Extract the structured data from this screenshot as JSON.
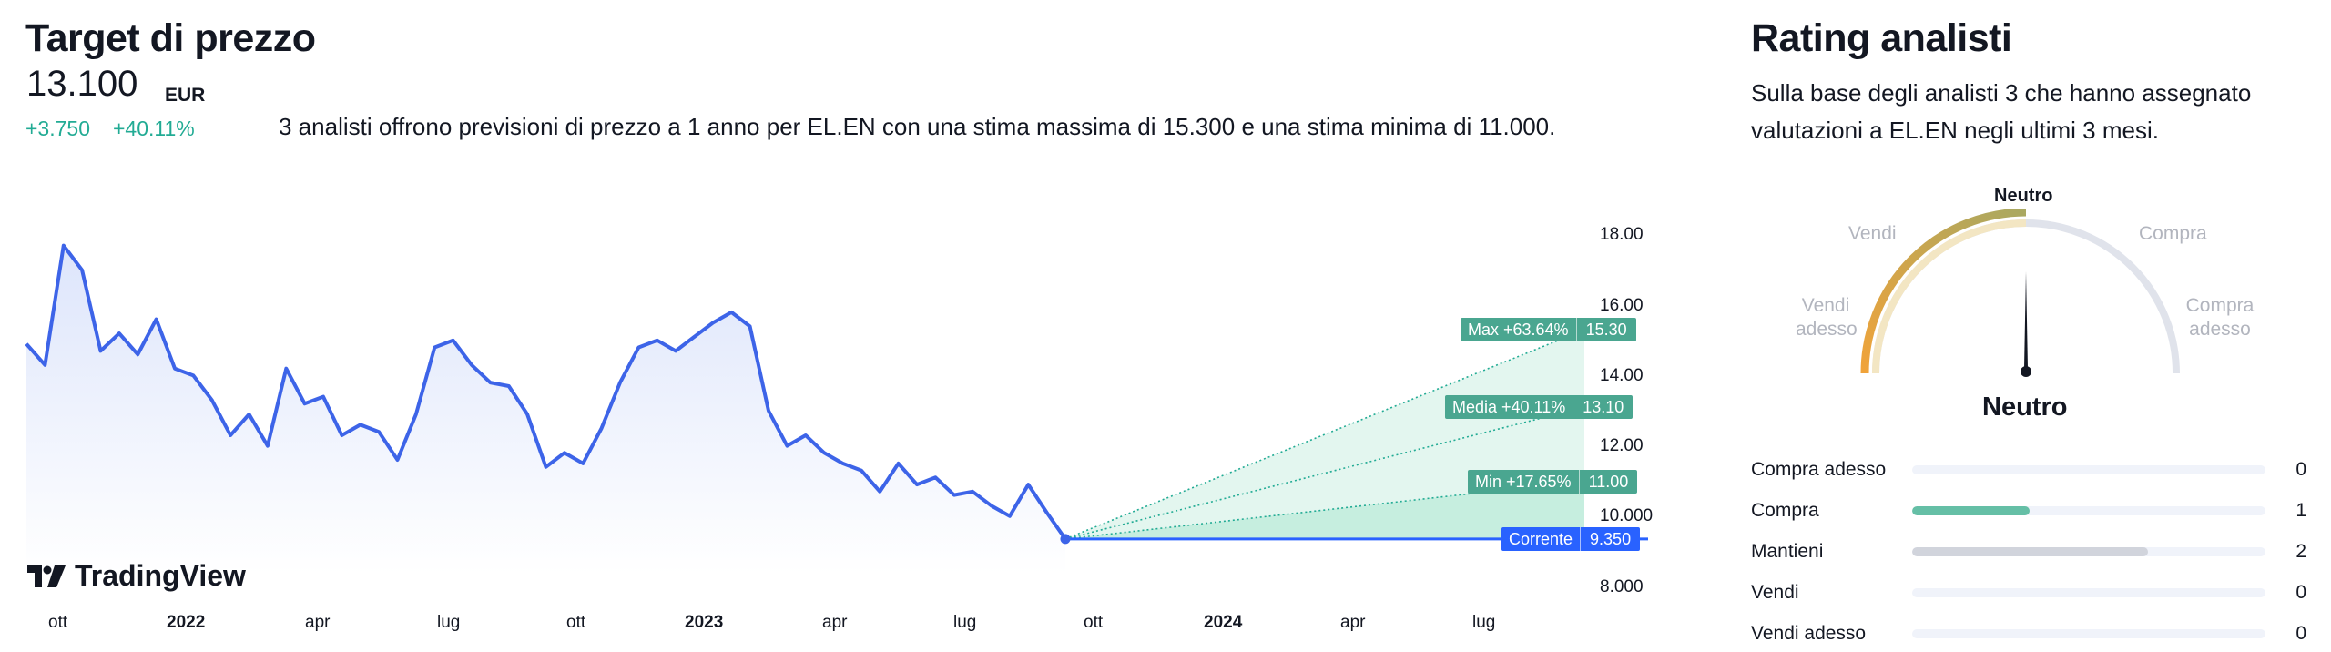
{
  "target": {
    "title": "Target di prezzo",
    "price": "13.100",
    "currency": "EUR",
    "change_abs": "+3.750",
    "change_pct": "+40.11%",
    "description": "3 analisti offrono previsioni di prezzo a 1 anno per EL.EN con una stima massima di 15.300 e una stima minima di 11.000."
  },
  "chart_data": {
    "type": "line",
    "title": "",
    "x_labels": [
      "ott",
      "2022",
      "apr",
      "lug",
      "ott",
      "2023",
      "apr",
      "lug",
      "ott",
      "2024",
      "apr",
      "lug"
    ],
    "x_labels_bold": [
      "2022",
      "2023",
      "2024"
    ],
    "x": [
      "2021-08-01",
      "2021-08-15",
      "2021-08-29",
      "2021-09-12",
      "2021-09-26",
      "2021-10-03",
      "2021-10-17",
      "2021-10-31",
      "2021-11-14",
      "2021-11-28",
      "2021-12-12",
      "2021-12-26",
      "2022-01-09",
      "2022-01-23",
      "2022-02-06",
      "2022-02-20",
      "2022-03-06",
      "2022-03-20",
      "2022-04-03",
      "2022-04-17",
      "2022-05-01",
      "2022-05-15",
      "2022-05-29",
      "2022-06-12",
      "2022-06-26",
      "2022-07-10",
      "2022-07-24",
      "2022-08-07",
      "2022-08-21",
      "2022-09-04",
      "2022-09-18",
      "2022-10-02",
      "2022-10-16",
      "2022-10-30",
      "2022-11-13",
      "2022-11-27",
      "2022-12-11",
      "2022-12-25",
      "2023-01-08",
      "2023-01-22",
      "2023-02-05",
      "2023-02-19",
      "2023-03-05",
      "2023-03-19",
      "2023-04-02",
      "2023-04-16",
      "2023-04-30",
      "2023-05-14",
      "2023-05-28",
      "2023-06-11",
      "2023-06-25",
      "2023-07-09",
      "2023-07-23",
      "2023-08-06",
      "2023-08-20",
      "2023-09-03",
      "2023-09-10"
    ],
    "series": [
      {
        "name": "",
        "values": [
          14.9,
          14.3,
          17.7,
          17.0,
          14.7,
          15.2,
          14.6,
          15.6,
          14.2,
          14.0,
          13.3,
          12.3,
          12.9,
          12.0,
          14.2,
          13.2,
          13.4,
          12.3,
          12.6,
          12.4,
          11.6,
          12.9,
          14.8,
          15.0,
          14.3,
          13.8,
          13.7,
          12.9,
          11.4,
          11.8,
          11.5,
          12.5,
          13.8,
          14.8,
          15.0,
          14.7,
          15.1,
          15.5,
          15.8,
          15.4,
          13.0,
          12.0,
          12.3,
          11.8,
          11.5,
          11.3,
          10.7,
          11.5,
          10.9,
          11.1,
          10.6,
          10.7,
          10.3,
          10.0,
          10.9,
          10.1,
          9.35
        ]
      }
    ],
    "forecast": {
      "current": {
        "label": "Corrente",
        "value": 9.35,
        "display": "9.350"
      },
      "max": {
        "label": "Max +63.64%",
        "value": 15.3,
        "display": "15.30"
      },
      "avg": {
        "label": "Media +40.11%",
        "value": 13.1,
        "display": "13.10"
      },
      "min": {
        "label": "Min +17.65%",
        "value": 11.0,
        "display": "11.00"
      }
    },
    "y_ticks": [
      "18.00",
      "16.00",
      "14.00",
      "12.00",
      "10.000",
      "8.000"
    ],
    "ylim": [
      8,
      18
    ],
    "grid": false,
    "colors": {
      "line": "#3d64e8",
      "area": "#e9eefb",
      "forecast": "#22ab94",
      "tag_green": "#4aa690",
      "tag_blue": "#2962ff"
    }
  },
  "watermark": {
    "text": "TradingView"
  },
  "rating": {
    "title": "Rating analisti",
    "description": "Sulla base degli analisti 3 che hanno assegnato valutazioni a EL.EN negli ultimi 3 mesi.",
    "gauge": {
      "top_label": "Neutro",
      "value_label": "Neutro",
      "labels": {
        "sell": "Vendi",
        "buy": "Compra",
        "strong_sell_1": "Vendi",
        "strong_sell_2": "adesso",
        "strong_buy_1": "Compra",
        "strong_buy_2": "adesso"
      },
      "level": 0.5
    },
    "rows": [
      {
        "label": "Compra adesso",
        "count": "0",
        "share": 0.0,
        "color": "#22ab94"
      },
      {
        "label": "Compra",
        "count": "1",
        "share": 0.333,
        "color": "#65bfa6"
      },
      {
        "label": "Mantieni",
        "count": "2",
        "share": 0.667,
        "color": "#d1d4dc"
      },
      {
        "label": "Vendi",
        "count": "0",
        "share": 0.0,
        "color": "#e0a84a"
      },
      {
        "label": "Vendi adesso",
        "count": "0",
        "share": 0.0,
        "color": "#e0a84a"
      }
    ]
  }
}
